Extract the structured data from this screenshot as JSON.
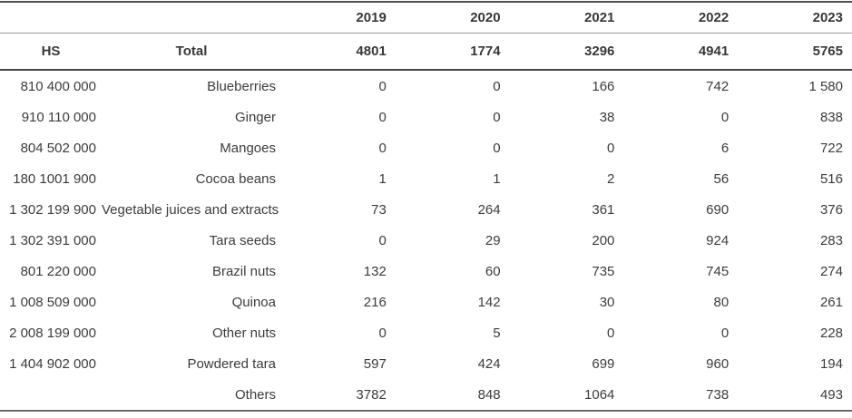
{
  "table": {
    "column_headers": {
      "hs": "HS",
      "total_label": "Total"
    },
    "years": [
      "2019",
      "2020",
      "2021",
      "2022",
      "2023"
    ],
    "totals": [
      "4801",
      "1774",
      "3296",
      "4941",
      "5765"
    ],
    "rows": [
      {
        "hs": "810 400 000",
        "name": "Blueberries",
        "values": [
          "0",
          "0",
          "166",
          "742",
          "1 580"
        ]
      },
      {
        "hs": "910 110 000",
        "name": "Ginger",
        "values": [
          "0",
          "0",
          "38",
          "0",
          "838"
        ]
      },
      {
        "hs": "804 502 000",
        "name": "Mangoes",
        "values": [
          "0",
          "0",
          "0",
          "6",
          "722"
        ]
      },
      {
        "hs": "180 1001 900",
        "name": "Cocoa beans",
        "values": [
          "1",
          "1",
          "2",
          "56",
          "516"
        ]
      },
      {
        "hs": "1 302 199 900",
        "name": "Vegetable juices and extracts",
        "values": [
          "73",
          "264",
          "361",
          "690",
          "376"
        ]
      },
      {
        "hs": "1 302 391 000",
        "name": "Tara seeds",
        "values": [
          "0",
          "29",
          "200",
          "924",
          "283"
        ]
      },
      {
        "hs": "801 220 000",
        "name": "Brazil nuts",
        "values": [
          "132",
          "60",
          "735",
          "745",
          "274"
        ]
      },
      {
        "hs": "1 008 509 000",
        "name": "Quinoa",
        "values": [
          "216",
          "142",
          "30",
          "80",
          "261"
        ]
      },
      {
        "hs": "2 008 199 000",
        "name": "Other nuts",
        "values": [
          "0",
          "5",
          "0",
          "0",
          "228"
        ]
      },
      {
        "hs": "1 404 902 000",
        "name": "Powdered tara",
        "values": [
          "597",
          "424",
          "699",
          "960",
          "194"
        ]
      },
      {
        "hs": "",
        "name": "Others",
        "values": [
          "3782",
          "848",
          "1064",
          "738",
          "493"
        ]
      }
    ],
    "colors": {
      "text": "#3c3c3c",
      "rule_dark": "#4e4e4e",
      "rule_light": "#9b9b9b",
      "rule_bottom": "#6b6b6b",
      "background": "#ffffff"
    }
  }
}
